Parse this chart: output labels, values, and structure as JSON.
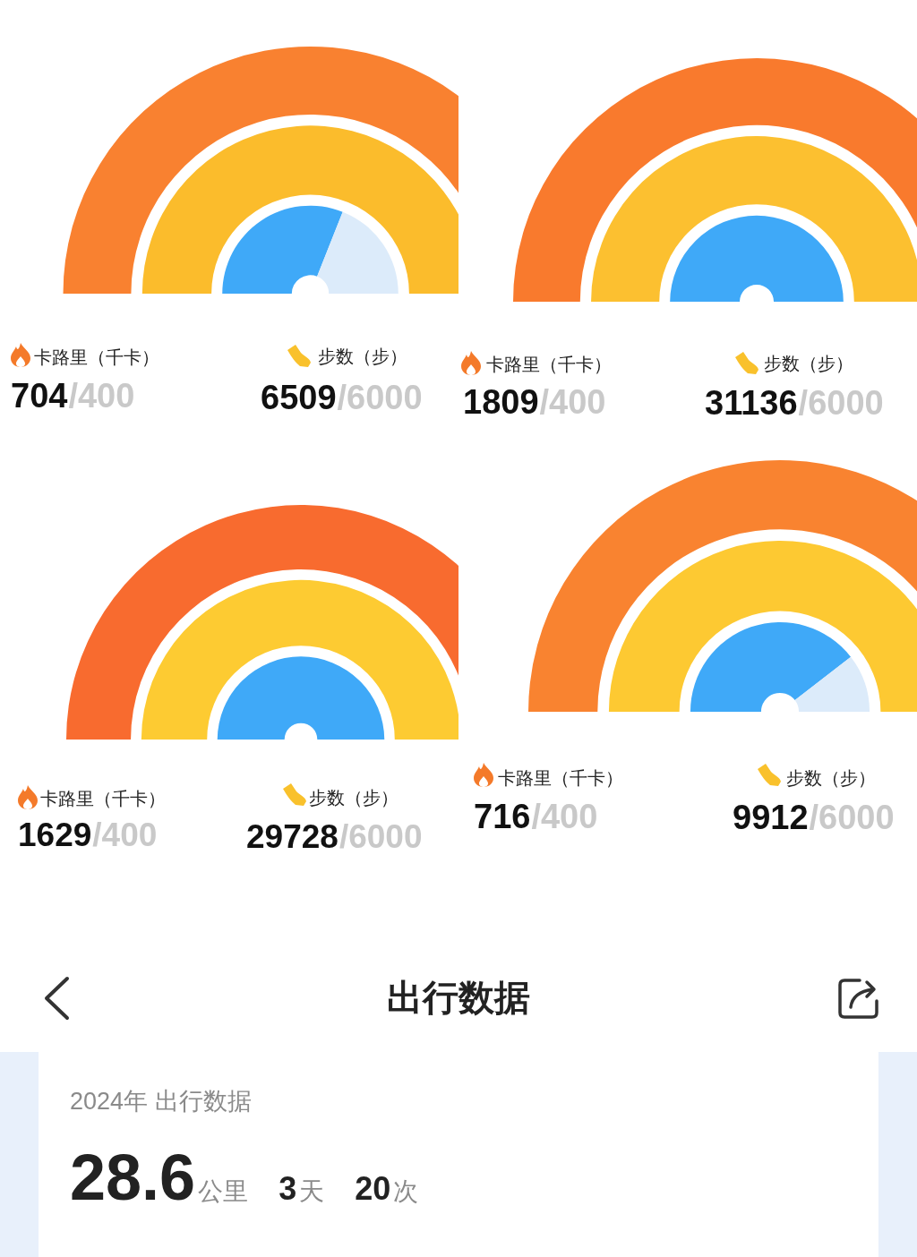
{
  "chart_data": [
    {
      "type": "other",
      "categories": [
        "卡路里（千卡）",
        "步数（步）"
      ],
      "values": [
        704,
        6509
      ],
      "data_labels": true,
      "annotations": [
        "/400",
        "/6000"
      ],
      "colors": [
        "#f98130",
        "#fbbc2c"
      ]
    },
    {
      "type": "donut",
      "categories": [
        null,
        null
      ],
      "values": [
        62,
        38
      ],
      "colors": [
        "#3fa9f8",
        "#dcebfa"
      ]
    },
    {
      "type": "other",
      "categories": [
        "卡路里（千卡）",
        "步数（步）"
      ],
      "values": [
        1809,
        31136
      ],
      "data_labels": true,
      "annotations": [
        "/400",
        "/6000"
      ],
      "colors": [
        "#f97a2d",
        "#fcc030"
      ]
    },
    {
      "type": "pie",
      "categories": [
        null
      ],
      "values": [
        100
      ],
      "colors": [
        "#3fa9f8"
      ]
    },
    {
      "type": "other",
      "categories": [
        "卡路里（千卡）",
        "步数（步）"
      ],
      "values": [
        1629,
        29728
      ],
      "data_labels": true,
      "annotations": [
        "/400",
        "/6000"
      ],
      "colors": [
        "#f86b2f",
        "#fdcb32"
      ]
    },
    {
      "type": "pie",
      "categories": [
        null
      ],
      "values": [
        100
      ],
      "colors": [
        "#3fa9f8"
      ]
    },
    {
      "type": "other",
      "categories": [
        "卡路里（千卡）",
        "步数（步）"
      ],
      "values": [
        716,
        9912
      ],
      "data_labels": true,
      "annotations": [
        "/400",
        "/6000"
      ],
      "colors": [
        "#f98330",
        "#fdc932"
      ]
    },
    {
      "type": "donut",
      "categories": [
        null,
        null
      ],
      "values": [
        79,
        21
      ],
      "colors": [
        "#3fa9f8",
        "#dcebfa"
      ]
    },
    {
      "type": "other",
      "title": "出行数据",
      "subtitle": "2024年 出行数据",
      "categories": [
        "公里",
        "天",
        "次"
      ],
      "values": [
        28.6,
        3,
        20
      ],
      "data_labels": true
    }
  ]
}
